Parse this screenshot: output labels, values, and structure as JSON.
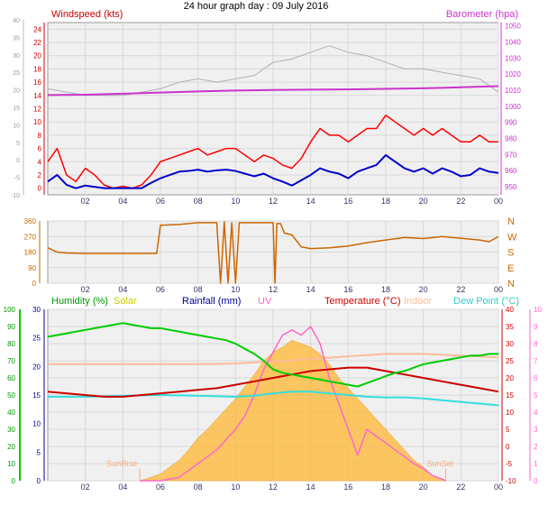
{
  "title": "24 hour graph day : 09 July 2016",
  "chart_data": [
    {
      "type": "line",
      "name": "wind-baro",
      "labels": {
        "wind": "Windspeed (kts)",
        "baro": "Barometer (hpa)"
      },
      "x_ticks": [
        "02",
        "04",
        "06",
        "08",
        "10",
        "12",
        "14",
        "16",
        "18",
        "20",
        "22",
        "00"
      ],
      "x_range_hours": [
        0,
        24
      ],
      "y_left_outer_ticks": [
        "40",
        "35",
        "30",
        "25",
        "20",
        "15",
        "10",
        "5",
        "0",
        "-5",
        "-10"
      ],
      "y_left_ticks": [
        "24",
        "22",
        "20",
        "18",
        "16",
        "14",
        "12",
        "10",
        "8",
        "6",
        "4",
        "2",
        "0"
      ],
      "y_left_range": [
        -1,
        25
      ],
      "y_right_ticks": [
        "1050",
        "1040",
        "1030",
        "1020",
        "1010",
        "1000",
        "990",
        "980",
        "970",
        "960",
        "950"
      ],
      "y_right_range": [
        945,
        1052
      ],
      "colors": {
        "gust": "#ff0000",
        "avg": "#0000cc",
        "baro": "#cc33cc",
        "grey": "#b0b0b0",
        "wind_label": "#cc0000",
        "baro_label": "#cc33cc"
      },
      "series": [
        {
          "key": "baro",
          "x": [
            0,
            2,
            4,
            6,
            8,
            10,
            12,
            14,
            16,
            18,
            20,
            22,
            24
          ],
          "y": [
            1007,
            1007.2,
            1007.8,
            1008.5,
            1009.2,
            1009.8,
            1010.1,
            1010.3,
            1010.5,
            1010.8,
            1011.2,
            1011.8,
            1012.5
          ]
        },
        {
          "key": "grey",
          "x": [
            0,
            1,
            2,
            3,
            4,
            5,
            6,
            7,
            8,
            9,
            10,
            11,
            12,
            13,
            14,
            15,
            16,
            17,
            18,
            19,
            20,
            21,
            22,
            23,
            24
          ],
          "y": [
            5,
            4.5,
            4,
            4,
            4,
            4.5,
            5,
            6,
            6.5,
            6,
            6.5,
            7,
            9,
            9.5,
            10.5,
            11.5,
            10.5,
            10,
            9,
            8,
            8,
            7.5,
            7,
            6.5,
            4.5
          ]
        },
        {
          "key": "gust",
          "x": [
            0,
            0.5,
            1,
            1.5,
            2,
            2.5,
            3,
            3.5,
            4,
            4.5,
            5,
            5.5,
            6,
            6.5,
            7,
            7.5,
            8,
            8.5,
            9,
            9.5,
            10,
            10.5,
            11,
            11.5,
            12,
            12.5,
            13,
            13.5,
            14,
            14.5,
            15,
            15.5,
            16,
            16.5,
            17,
            17.5,
            18,
            18.5,
            19,
            19.5,
            20,
            20.5,
            21,
            21.5,
            22,
            22.5,
            23,
            23.5,
            24
          ],
          "y": [
            4,
            6,
            2,
            1,
            3,
            2,
            0.5,
            0,
            0.3,
            0,
            0.5,
            2,
            4,
            4.5,
            5,
            5.5,
            6,
            5,
            5.5,
            6,
            6,
            5,
            4,
            5,
            4.5,
            3.5,
            3,
            4.5,
            7,
            9,
            8,
            8,
            7,
            8,
            9,
            9,
            11,
            10,
            9,
            8,
            9,
            8,
            9,
            8,
            7,
            7,
            8,
            7,
            7
          ]
        },
        {
          "key": "avg",
          "x": [
            0,
            0.5,
            1,
            1.5,
            2,
            2.5,
            3,
            3.5,
            4,
            4.5,
            5,
            5.5,
            6,
            6.5,
            7,
            7.5,
            8,
            8.5,
            9,
            9.5,
            10,
            10.5,
            11,
            11.5,
            12,
            12.5,
            13,
            13.5,
            14,
            14.5,
            15,
            15.5,
            16,
            16.5,
            17,
            17.5,
            18,
            18.5,
            19,
            19.5,
            20,
            20.5,
            21,
            21.5,
            22,
            22.5,
            23,
            23.5,
            24
          ],
          "y": [
            1,
            2,
            0.5,
            0,
            0.4,
            0.2,
            0,
            0,
            0,
            0,
            0,
            0.8,
            1.5,
            2,
            2.5,
            2.6,
            2.8,
            2.5,
            2.7,
            2.8,
            2.6,
            2.2,
            1.8,
            2.2,
            1.5,
            1,
            0.4,
            1.2,
            2,
            3,
            2.5,
            2.2,
            1.5,
            2.5,
            3,
            3.5,
            5,
            4,
            3,
            2.5,
            3,
            2.2,
            3,
            2.5,
            1.8,
            2,
            3,
            2.5,
            2.3
          ]
        }
      ]
    },
    {
      "type": "line",
      "name": "wind-direction",
      "x_ticks": [
        "02",
        "04",
        "06",
        "08",
        "10",
        "12",
        "14",
        "16",
        "18",
        "20",
        "22",
        "00"
      ],
      "x_range_hours": [
        0,
        24
      ],
      "y_left_ticks": [
        "360",
        "270",
        "180",
        "90",
        "0"
      ],
      "y_left_range": [
        0,
        360
      ],
      "y_right_ticks": [
        "N",
        "W",
        "S",
        "E",
        "N"
      ],
      "colors": {
        "dir": "#cc6600"
      },
      "series": [
        {
          "key": "dir",
          "x": [
            0,
            0.5,
            1,
            2,
            3,
            4,
            5,
            5.8,
            6,
            7,
            8,
            9,
            9.2,
            9.4,
            9.6,
            9.8,
            10,
            10.2,
            10.4,
            10.6,
            11,
            11.5,
            11.8,
            12,
            12.1,
            12.2,
            12.4,
            12.6,
            13,
            13.5,
            14,
            15,
            16,
            17,
            18,
            19,
            20,
            21,
            22,
            23,
            23.5,
            24
          ],
          "y": [
            205,
            180,
            175,
            172,
            172,
            172,
            172,
            172,
            335,
            340,
            350,
            350,
            0,
            355,
            0,
            350,
            0,
            350,
            350,
            350,
            350,
            350,
            350,
            350,
            0,
            345,
            345,
            290,
            280,
            210,
            200,
            205,
            215,
            235,
            250,
            265,
            258,
            270,
            260,
            250,
            240,
            270
          ]
        }
      ]
    },
    {
      "type": "line",
      "name": "temp-humidity",
      "labels": {
        "humidity": "Humidity (%)",
        "solar": "Solar",
        "rain": "Rainfall (mm)",
        "uv": "UV",
        "temp": "Temperature (°C)",
        "indoor": "Indoor",
        "dew": "Dew Point (°C)"
      },
      "x_ticks": [
        "02",
        "04",
        "06",
        "08",
        "10",
        "12",
        "14",
        "16",
        "18",
        "20",
        "22",
        "00"
      ],
      "x_range_hours": [
        0,
        24
      ],
      "y_hum_ticks": [
        "100",
        "90",
        "80",
        "70",
        "60",
        "50",
        "40",
        "30",
        "20",
        "10",
        "0"
      ],
      "y_hum_range": [
        0,
        100
      ],
      "y_rain_ticks": [
        "30",
        "25",
        "20",
        "15",
        "10",
        "5",
        "0"
      ],
      "y_rain_range": [
        0,
        30
      ],
      "y_temp_ticks": [
        "40",
        "35",
        "30",
        "25",
        "20",
        "15",
        "10",
        "5",
        "0",
        "-5",
        "-10"
      ],
      "y_temp_range": [
        -10,
        40
      ],
      "y_uv_ticks": [
        "10",
        "9",
        "8",
        "7",
        "6",
        "5",
        "4",
        "3",
        "2",
        "1",
        "0"
      ],
      "y_uv_range": [
        0,
        10
      ],
      "sunrise_label": "SunRise",
      "sunset_label": "SunSet",
      "sunrise_hour": 4.9,
      "sunset_hour": 21.2,
      "colors": {
        "humidity": "#00cc00",
        "solar": "#ffb833",
        "rain": "#000099",
        "uv": "#ff66cc",
        "temp": "#cc0000",
        "indoor": "#ffbb99",
        "dew": "#33dddd",
        "sun": "#ffaa77",
        "hum_label": "#009900",
        "solar_label": "#cccc00",
        "rain_label": "#000099",
        "uv_label": "#ff66cc",
        "temp_label": "#cc0000",
        "indoor_label": "#ffbb99",
        "dew_label": "#33cccc"
      },
      "series": [
        {
          "key": "indoor",
          "axis": "temp",
          "x": [
            0,
            2,
            4,
            6,
            8,
            10,
            12,
            14,
            16,
            18,
            20,
            22,
            24
          ],
          "y": [
            24,
            24,
            24,
            24,
            24,
            24.2,
            24.8,
            25.5,
            26.3,
            27,
            27,
            26.5,
            26
          ]
        },
        {
          "key": "solar",
          "axis": "uv",
          "x": [
            4.9,
            5.5,
            6,
            6.5,
            7,
            7.5,
            8,
            8.5,
            9,
            9.5,
            10,
            10.5,
            11,
            11.5,
            12,
            12.5,
            13,
            13.5,
            14,
            14.5,
            15,
            15.5,
            16,
            16.5,
            17,
            17.5,
            18,
            18.5,
            19,
            19.5,
            20,
            20.5,
            21.2
          ],
          "y": [
            0,
            0.2,
            0.4,
            0.8,
            1.2,
            1.8,
            2.5,
            3,
            3.6,
            4.2,
            4.8,
            5.5,
            6.2,
            7,
            7.5,
            7.8,
            8.2,
            8,
            7.8,
            7.4,
            6.8,
            6,
            5.4,
            4.8,
            4.2,
            3.6,
            3,
            2.4,
            1.8,
            1.2,
            0.8,
            0.3,
            0
          ]
        },
        {
          "key": "uv",
          "axis": "uv",
          "x": [
            4.9,
            6,
            7,
            8,
            9,
            10,
            10.5,
            11,
            11.5,
            12,
            12.5,
            13,
            13.5,
            14,
            14.5,
            15,
            15.5,
            16,
            16.5,
            17,
            17.5,
            18,
            18.5,
            19,
            19.5,
            20,
            20.5,
            21,
            21.2
          ],
          "y": [
            0,
            0,
            0.2,
            1,
            1.8,
            3,
            3.8,
            5,
            6.5,
            7.5,
            8.5,
            8.8,
            8.5,
            9,
            8,
            6,
            4.5,
            3,
            1.5,
            3,
            2.6,
            2.2,
            1.8,
            1.4,
            1,
            0.7,
            0.3,
            0.1,
            0
          ]
        },
        {
          "key": "humidity",
          "axis": "hum",
          "x": [
            0,
            0.5,
            1,
            1.5,
            2,
            2.5,
            3,
            3.5,
            4,
            4.5,
            5,
            5.5,
            6,
            6.5,
            7,
            7.5,
            8,
            8.5,
            9,
            9.5,
            10,
            10.5,
            11,
            11.5,
            12,
            12.5,
            13,
            13.5,
            14,
            14.5,
            15,
            15.5,
            16,
            16.5,
            17,
            17.5,
            18,
            18.5,
            19,
            19.5,
            20,
            20.5,
            21,
            21.5,
            22,
            22.5,
            23,
            23.5,
            24
          ],
          "y": [
            84,
            85,
            86,
            87,
            88,
            89,
            90,
            91,
            92,
            91,
            90,
            89,
            89,
            88,
            87,
            86,
            85,
            84,
            83,
            82,
            80,
            77,
            74,
            70,
            65,
            63,
            62,
            61,
            60,
            59,
            58,
            57,
            56,
            55,
            57,
            59,
            61,
            63,
            64,
            66,
            68,
            69,
            70,
            71,
            72,
            73,
            73,
            74,
            74
          ]
        },
        {
          "key": "temp",
          "axis": "temp",
          "x": [
            0,
            1,
            2,
            3,
            4,
            5,
            6,
            7,
            8,
            9,
            10,
            11,
            12,
            13,
            14,
            15,
            16,
            17,
            18,
            19,
            20,
            21,
            22,
            23,
            24
          ],
          "y": [
            16,
            15.5,
            15,
            14.5,
            14.5,
            15,
            15.5,
            16,
            16.5,
            17,
            18,
            19,
            20,
            21,
            22,
            22.5,
            23,
            23,
            22,
            21,
            20,
            19,
            18,
            17,
            16
          ]
        },
        {
          "key": "dew",
          "axis": "temp",
          "x": [
            0,
            2,
            4,
            6,
            8,
            10,
            11,
            12,
            13,
            14,
            15,
            16,
            17,
            18,
            19,
            20,
            21,
            22,
            23,
            24
          ],
          "y": [
            14.5,
            14.5,
            14.8,
            15,
            14.8,
            14.5,
            14.8,
            15.5,
            16,
            16,
            15.5,
            15,
            14.5,
            14.3,
            14.3,
            14,
            13.5,
            13,
            12.5,
            12
          ]
        }
      ]
    }
  ]
}
